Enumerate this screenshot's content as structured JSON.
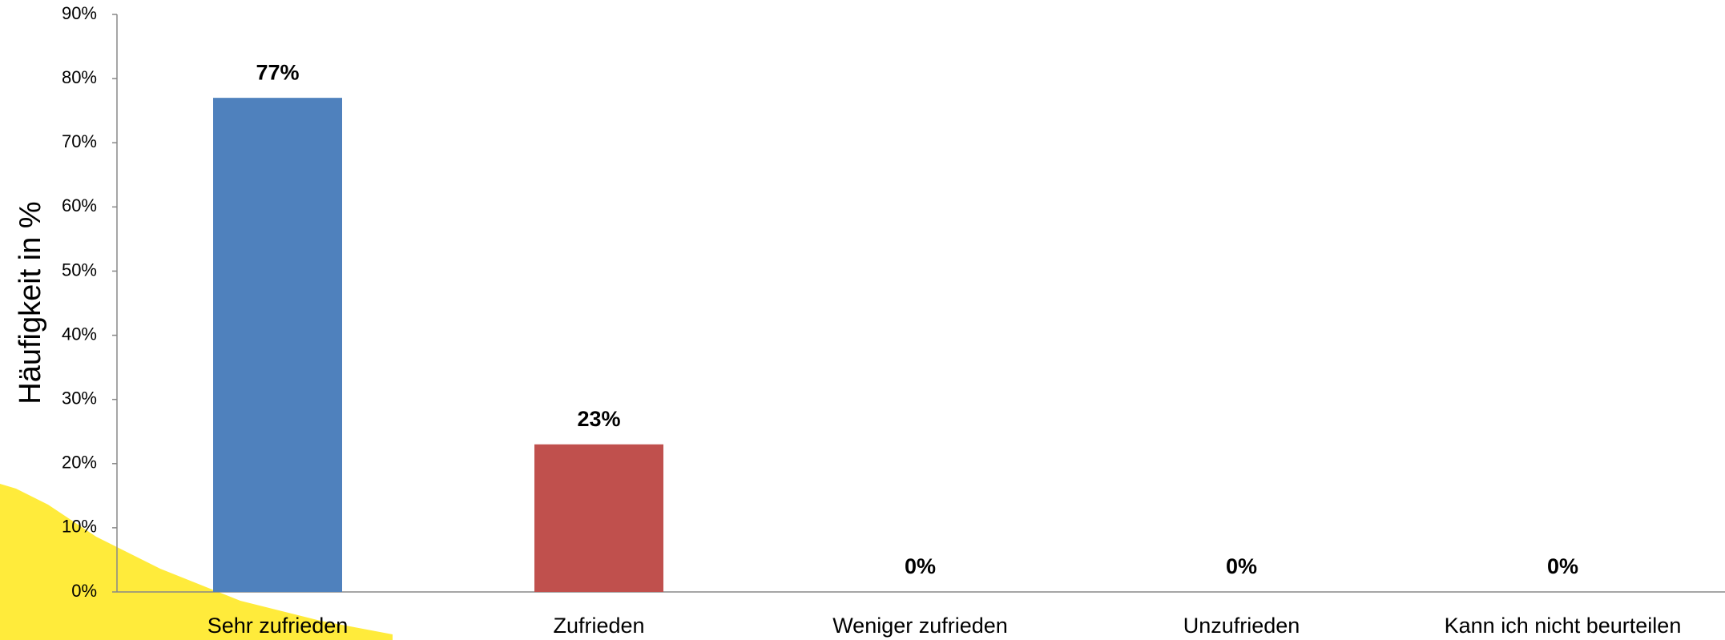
{
  "chart_data": {
    "type": "bar",
    "y_label": "Häufigkeit in %",
    "categories": [
      "Sehr zufrieden",
      "Zufrieden",
      "Weniger zufrieden",
      "Unzufrieden",
      "Kann ich nicht beurteilen"
    ],
    "values": [
      77,
      23,
      0,
      0,
      0
    ],
    "value_labels": [
      "77%",
      "23%",
      "0%",
      "0%",
      "0%"
    ],
    "colors": [
      "#4f81bd",
      "#c0504d",
      "#9bbb59",
      "#8064a2",
      "#4bacc6"
    ],
    "ylim": [
      0,
      90
    ],
    "yticks": [
      {
        "value": 0,
        "label": "0%"
      },
      {
        "value": 10,
        "label": "10%"
      },
      {
        "value": 20,
        "label": "20%"
      },
      {
        "value": 30,
        "label": "30%"
      },
      {
        "value": 40,
        "label": "40%"
      },
      {
        "value": 50,
        "label": "50%"
      },
      {
        "value": 60,
        "label": "60%"
      },
      {
        "value": 70,
        "label": "70%"
      },
      {
        "value": 80,
        "label": "80%"
      },
      {
        "value": 90,
        "label": "90%"
      }
    ],
    "grid": false
  }
}
